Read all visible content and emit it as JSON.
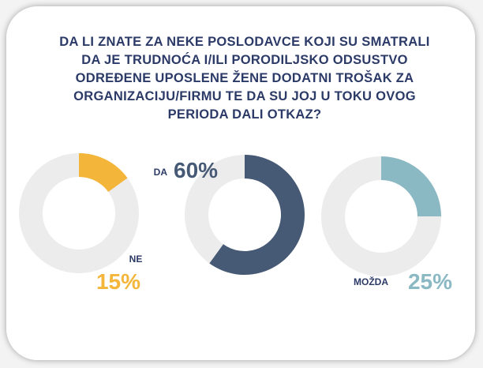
{
  "title": [
    "DA LI ZNATE ZA NEKE POSLODAVCE KOJI SU SMATRALI",
    "DA JE TRUDNOĆA I/ILI PORODILJSKO ODSUSTVO",
    "ODREĐENE UPOSLENE ŽENE DODATNI TROŠAK ZA",
    "ORGANIZACIJU/FIRMU TE DA SU JOJ U TOKU OVOG",
    "PERIODA DALI OTKAZ?"
  ],
  "chart_data": [
    {
      "type": "donut",
      "categories": [
        "NE"
      ],
      "values": [
        15
      ],
      "value_labels": [
        "15%"
      ],
      "color": "#f4b63a"
    },
    {
      "type": "donut",
      "categories": [
        "DA"
      ],
      "values": [
        60
      ],
      "value_labels": [
        "60%"
      ],
      "color": "#475a75"
    },
    {
      "type": "donut",
      "categories": [
        "MOŽDA"
      ],
      "values": [
        25
      ],
      "value_labels": [
        "25%"
      ],
      "color": "#8ab8c3"
    }
  ]
}
